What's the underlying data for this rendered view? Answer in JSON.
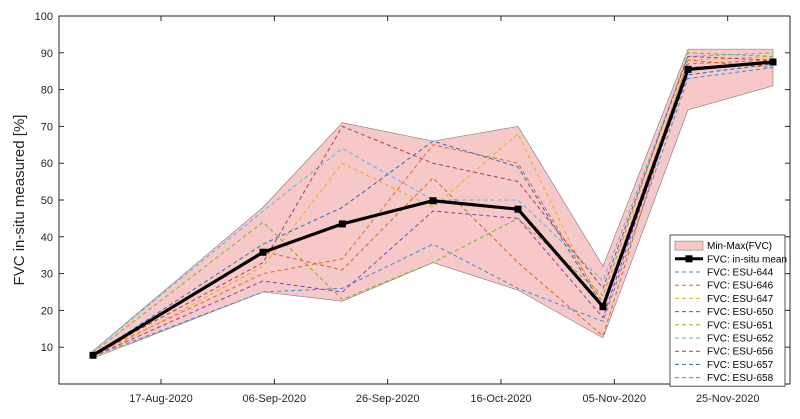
{
  "chart_data": {
    "type": "line",
    "title": "",
    "xlabel": "",
    "ylabel": "FVC in-situ measured [%]",
    "ylim": [
      0,
      100
    ],
    "y_ticks": [
      10,
      20,
      30,
      40,
      50,
      60,
      70,
      80,
      90,
      100
    ],
    "xlim": [
      "2020-07-30",
      "2020-12-06"
    ],
    "x_ticks": [
      "2020-08-17",
      "2020-09-06",
      "2020-09-26",
      "2020-10-16",
      "2020-11-05",
      "2020-11-25"
    ],
    "x_tick_labels": [
      "17-Aug-2020",
      "06-Sep-2020",
      "26-Sep-2020",
      "16-Oct-2020",
      "05-Nov-2020",
      "25-Nov-2020"
    ],
    "grid": false,
    "legend_position": "bottom-right",
    "x": [
      "2020-08-05",
      "2020-09-04",
      "2020-09-18",
      "2020-10-04",
      "2020-10-19",
      "2020-11-03",
      "2020-11-18",
      "2020-12-03"
    ],
    "band": {
      "name": "Min-Max(FVC)",
      "color": "#f7c8c8",
      "min": [
        7,
        25,
        22.5,
        33,
        25.5,
        12.5,
        74.5,
        81
      ],
      "max": [
        9,
        48,
        71,
        66,
        70,
        32,
        91,
        91
      ]
    },
    "series": [
      {
        "name": "FVC: in-situ mean",
        "color": "#000000",
        "dash": "solid",
        "marker": "square",
        "values": [
          7.8,
          35.8,
          43.5,
          49.8,
          47.5,
          21,
          85.5,
          87.5
        ]
      },
      {
        "name": "FVC: ESU-644",
        "color": "#3e8ed6",
        "dash": "dashed",
        "values": [
          7.5,
          25,
          26,
          38,
          26,
          17,
          83,
          86
        ]
      },
      {
        "name": "FVC: ESU-646",
        "color": "#e06a2c",
        "dash": "dashed",
        "values": [
          8,
          30,
          34,
          65,
          60,
          22,
          87,
          88
        ]
      },
      {
        "name": "FVC: ESU-647",
        "color": "#e6b01a",
        "dash": "dashed",
        "values": [
          7,
          32,
          60,
          48,
          68,
          20,
          88,
          89
        ]
      },
      {
        "name": "FVC: ESU-650",
        "color": "#8a3fb0",
        "dash": "dashed",
        "values": [
          7.5,
          28,
          25,
          47,
          45,
          18,
          86,
          87
        ]
      },
      {
        "name": "FVC: ESU-651",
        "color": "#7ab52b",
        "dash": "dashed",
        "values": [
          8.5,
          44,
          23,
          33,
          45,
          24,
          90,
          89
        ]
      },
      {
        "name": "FVC: ESU-652",
        "color": "#54b6e6",
        "dash": "dashed",
        "values": [
          9,
          47,
          64,
          50,
          50,
          28,
          89,
          90
        ]
      },
      {
        "name": "FVC: ESU-656",
        "color": "#b03a5a",
        "dash": "dashed",
        "values": [
          8,
          33,
          70,
          60,
          55,
          26,
          89,
          88
        ]
      },
      {
        "name": "FVC: ESU-657",
        "color": "#2a6fb8",
        "dash": "dashed",
        "values": [
          7.8,
          38,
          48,
          66,
          59,
          21,
          84,
          87
        ]
      },
      {
        "name": "FVC: ESU-658",
        "color": "#d2691e",
        "dash": "dashed",
        "values": [
          7.2,
          36,
          31,
          56,
          33,
          13,
          88,
          86
        ]
      }
    ]
  }
}
